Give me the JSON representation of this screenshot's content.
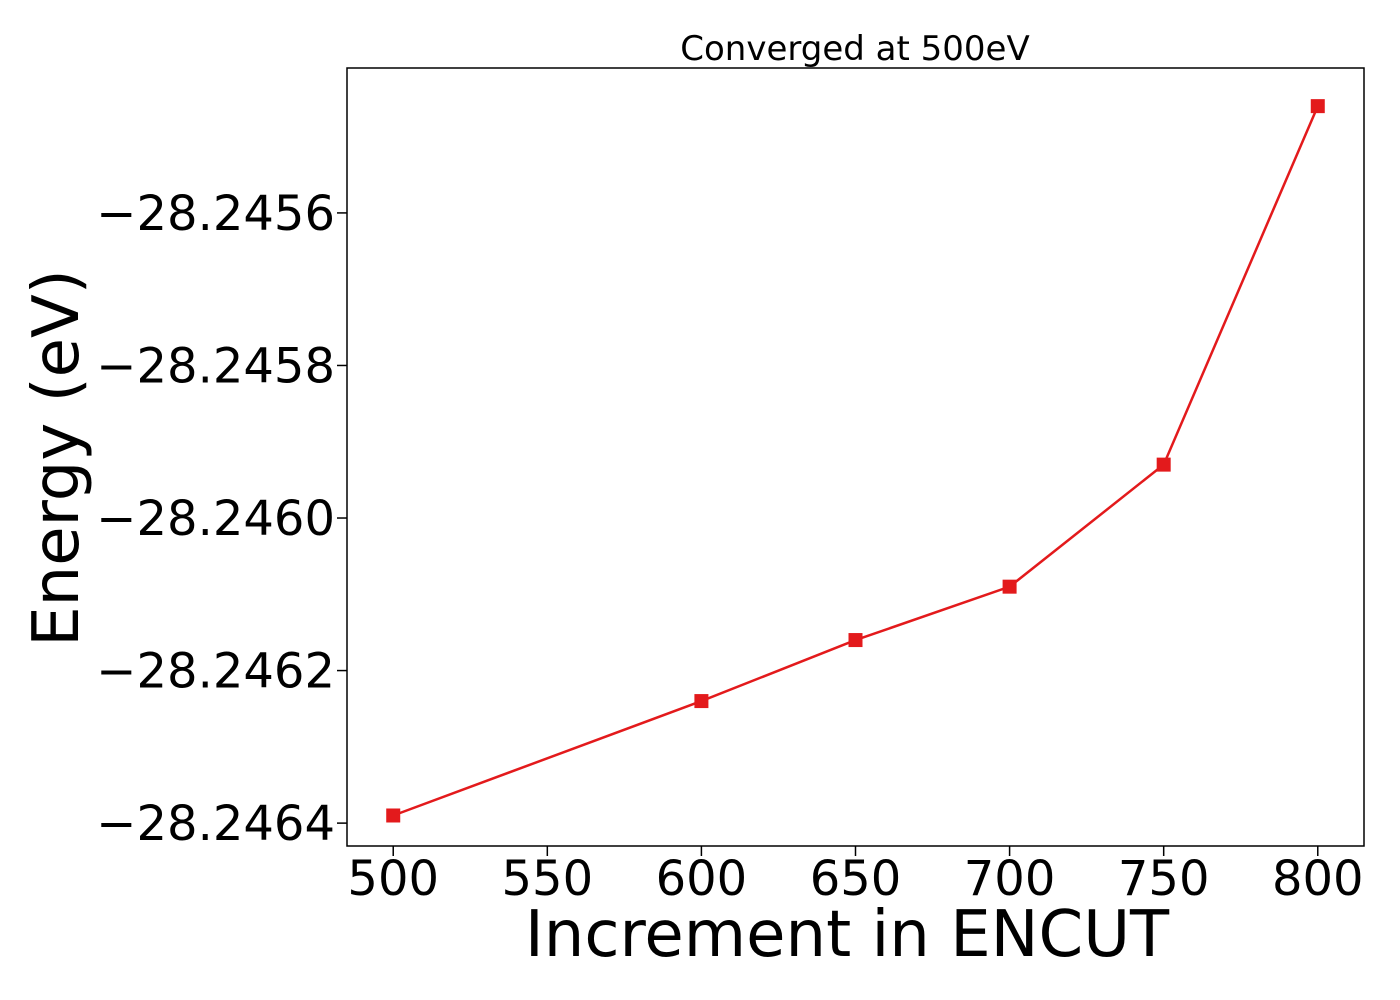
{
  "chart_data": {
    "type": "line",
    "title": "Converged at 500eV",
    "xlabel": "Increment in ENCUT",
    "ylabel": "Energy (eV)",
    "x": [
      500,
      600,
      650,
      700,
      750,
      800
    ],
    "series": [
      {
        "values": [
          -28.24639,
          -28.24624,
          -28.24616,
          -28.24609,
          -28.24593,
          -28.24546
        ],
        "color": "#e31a1c",
        "marker": "square"
      }
    ],
    "xlim": [
      485,
      815
    ],
    "ylim": [
      -28.24643,
      -28.24541
    ],
    "xticks": [
      500,
      550,
      600,
      650,
      700,
      750,
      800
    ],
    "xtick_labels": [
      "500",
      "550",
      "600",
      "650",
      "700",
      "750",
      "800"
    ],
    "yticks": [
      -28.2456,
      -28.2458,
      -28.246,
      -28.2462,
      -28.2464
    ],
    "ytick_labels": [
      "−28.2456",
      "−28.2458",
      "−28.2460",
      "−28.2462",
      "−28.2464"
    ],
    "grid": false,
    "legend": false
  }
}
